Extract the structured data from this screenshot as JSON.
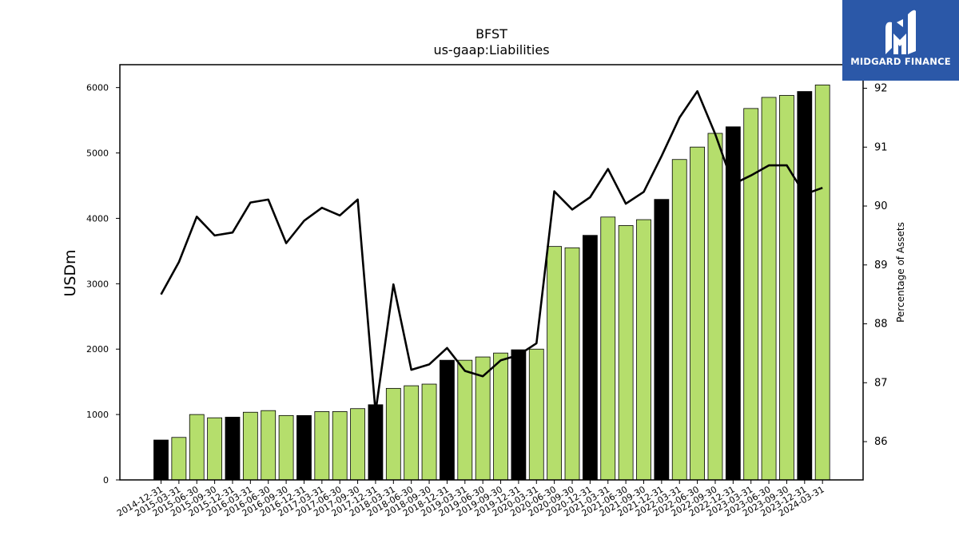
{
  "logo": {
    "text": "MIDGARD FINANCE",
    "icon": "midgard-m-icon"
  },
  "chart_data": {
    "type": "bar",
    "title": "BFST",
    "subtitle": "us-gaap:Liabilities",
    "ylabel": "USDm",
    "y2label": "Percentage of Assets",
    "ylim": [
      0,
      6350
    ],
    "y2lim": [
      85.35,
      92.4
    ],
    "yticks": [
      0,
      1000,
      2000,
      3000,
      4000,
      5000,
      6000
    ],
    "y2ticks": [
      86,
      87,
      88,
      89,
      90,
      91,
      92
    ],
    "grid": false,
    "colors": {
      "bar_quarter": "#b5de6c",
      "bar_year_end": "#000000",
      "line": "#000000"
    },
    "categories": [
      "2014-12-31",
      "2015-03-31",
      "2015-06-30",
      "2015-09-30",
      "2015-12-31",
      "2016-03-31",
      "2016-06-30",
      "2016-09-30",
      "2016-12-31",
      "2017-03-31",
      "2017-06-30",
      "2017-09-30",
      "2017-12-31",
      "2018-03-31",
      "2018-06-30",
      "2018-09-30",
      "2018-12-31",
      "2019-03-31",
      "2019-06-30",
      "2019-09-30",
      "2019-12-31",
      "2020-03-31",
      "2020-06-30",
      "2020-09-30",
      "2020-12-31",
      "2021-03-31",
      "2021-06-30",
      "2021-09-30",
      "2021-12-31",
      "2022-03-31",
      "2022-06-30",
      "2022-09-30",
      "2022-12-31",
      "2023-03-31",
      "2023-06-30",
      "2023-09-30",
      "2023-12-31",
      "2024-03-31"
    ],
    "series": [
      {
        "name": "Liabilities",
        "type": "bar",
        "axis": "left",
        "values": [
          610,
          650,
          1000,
          950,
          960,
          1035,
          1060,
          985,
          985,
          1045,
          1045,
          1090,
          1150,
          1400,
          1440,
          1465,
          1830,
          1830,
          1880,
          1940,
          1990,
          2000,
          3570,
          3550,
          3740,
          4020,
          3890,
          3980,
          4290,
          4900,
          5090,
          5300,
          5400,
          5680,
          5850,
          5880,
          5940,
          6040
        ]
      },
      {
        "name": "Percentage of Assets",
        "type": "line",
        "axis": "right",
        "values": [
          88.5,
          89.05,
          89.82,
          89.5,
          89.55,
          90.06,
          90.11,
          89.37,
          89.75,
          89.97,
          89.84,
          90.11,
          86.5,
          88.67,
          87.22,
          87.31,
          87.59,
          87.2,
          87.11,
          87.38,
          87.47,
          87.67,
          90.25,
          89.94,
          90.15,
          90.63,
          90.04,
          90.24,
          90.85,
          91.5,
          91.95,
          91.22,
          90.37,
          90.52,
          90.69,
          90.69,
          90.2,
          90.31
        ]
      }
    ]
  }
}
